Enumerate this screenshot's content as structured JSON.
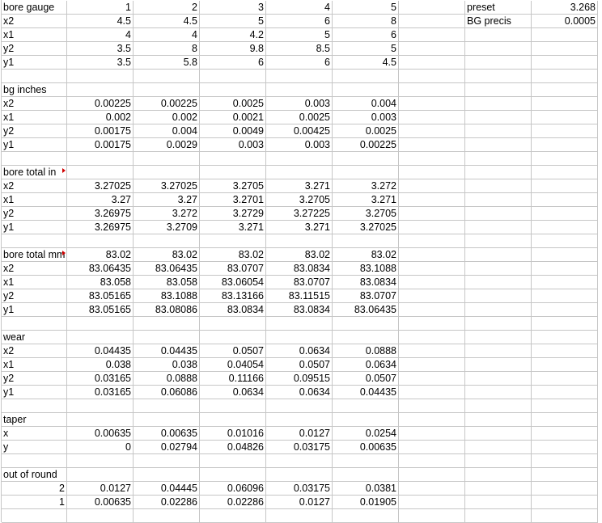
{
  "sheet": {
    "rows": [
      [
        "bore gauge",
        "1",
        "2",
        "3",
        "4",
        "5",
        "",
        "preset",
        "3.268"
      ],
      [
        "x2",
        "4.5",
        "4.5",
        "5",
        "6",
        "8",
        "",
        "BG precis",
        "0.0005"
      ],
      [
        "x1",
        "4",
        "4",
        "4.2",
        "5",
        "6",
        "",
        "",
        ""
      ],
      [
        "y2",
        "3.5",
        "8",
        "9.8",
        "8.5",
        "5",
        "",
        "",
        ""
      ],
      [
        "y1",
        "3.5",
        "5.8",
        "6",
        "6",
        "4.5",
        "",
        "",
        ""
      ],
      [
        "",
        "",
        "",
        "",
        "",
        "",
        "",
        "",
        ""
      ],
      [
        "bg inches",
        "",
        "",
        "",
        "",
        "",
        "",
        "",
        ""
      ],
      [
        "x2",
        "0.00225",
        "0.00225",
        "0.0025",
        "0.003",
        "0.004",
        "",
        "",
        ""
      ],
      [
        "x1",
        "0.002",
        "0.002",
        "0.0021",
        "0.0025",
        "0.003",
        "",
        "",
        ""
      ],
      [
        "y2",
        "0.00175",
        "0.004",
        "0.0049",
        "0.00425",
        "0.0025",
        "",
        "",
        ""
      ],
      [
        "y1",
        "0.00175",
        "0.0029",
        "0.003",
        "0.003",
        "0.00225",
        "",
        "",
        ""
      ],
      [
        "",
        "",
        "",
        "",
        "",
        "",
        "",
        "",
        ""
      ],
      [
        "bore total in",
        "",
        "",
        "",
        "",
        "",
        "",
        "",
        ""
      ],
      [
        "x2",
        "3.27025",
        "3.27025",
        "3.2705",
        "3.271",
        "3.272",
        "",
        "",
        ""
      ],
      [
        "x1",
        "3.27",
        "3.27",
        "3.2701",
        "3.2705",
        "3.271",
        "",
        "",
        ""
      ],
      [
        "y2",
        "3.26975",
        "3.272",
        "3.2729",
        "3.27225",
        "3.2705",
        "",
        "",
        ""
      ],
      [
        "y1",
        "3.26975",
        "3.2709",
        "3.271",
        "3.271",
        "3.27025",
        "",
        "",
        ""
      ],
      [
        "",
        "",
        "",
        "",
        "",
        "",
        "",
        "",
        ""
      ],
      [
        "bore total mm",
        "83.02",
        "83.02",
        "83.02",
        "83.02",
        "83.02",
        "",
        "",
        ""
      ],
      [
        "x2",
        "83.06435",
        "83.06435",
        "83.0707",
        "83.0834",
        "83.1088",
        "",
        "",
        ""
      ],
      [
        "x1",
        "83.058",
        "83.058",
        "83.06054",
        "83.0707",
        "83.0834",
        "",
        "",
        ""
      ],
      [
        "y2",
        "83.05165",
        "83.1088",
        "83.13166",
        "83.11515",
        "83.0707",
        "",
        "",
        ""
      ],
      [
        "y1",
        "83.05165",
        "83.08086",
        "83.0834",
        "83.0834",
        "83.06435",
        "",
        "",
        ""
      ],
      [
        "",
        "",
        "",
        "",
        "",
        "",
        "",
        "",
        ""
      ],
      [
        "wear",
        "",
        "",
        "",
        "",
        "",
        "",
        "",
        ""
      ],
      [
        "x2",
        "0.04435",
        "0.04435",
        "0.0507",
        "0.0634",
        "0.0888",
        "",
        "",
        ""
      ],
      [
        "x1",
        "0.038",
        "0.038",
        "0.04054",
        "0.0507",
        "0.0634",
        "",
        "",
        ""
      ],
      [
        "y2",
        "0.03165",
        "0.0888",
        "0.11166",
        "0.09515",
        "0.0507",
        "",
        "",
        ""
      ],
      [
        "y1",
        "0.03165",
        "0.06086",
        "0.0634",
        "0.0634",
        "0.04435",
        "",
        "",
        ""
      ],
      [
        "",
        "",
        "",
        "",
        "",
        "",
        "",
        "",
        ""
      ],
      [
        "taper",
        "",
        "",
        "",
        "",
        "",
        "",
        "",
        ""
      ],
      [
        "x",
        "0.00635",
        "0.00635",
        "0.01016",
        "0.0127",
        "0.0254",
        "",
        "",
        ""
      ],
      [
        "y",
        "0",
        "0.02794",
        "0.04826",
        "0.03175",
        "0.00635",
        "",
        "",
        ""
      ],
      [
        "",
        "",
        "",
        "",
        "",
        "",
        "",
        "",
        ""
      ],
      [
        "out of round",
        "",
        "",
        "",
        "",
        "",
        "",
        "",
        ""
      ],
      [
        "2",
        "0.0127",
        "0.04445",
        "0.06096",
        "0.03175",
        "0.0381",
        "",
        "",
        ""
      ],
      [
        "1",
        "0.00635",
        "0.02286",
        "0.02286",
        "0.0127",
        "0.01905",
        "",
        "",
        ""
      ],
      [
        "",
        "",
        "",
        "",
        "",
        "",
        "",
        "",
        ""
      ]
    ]
  }
}
